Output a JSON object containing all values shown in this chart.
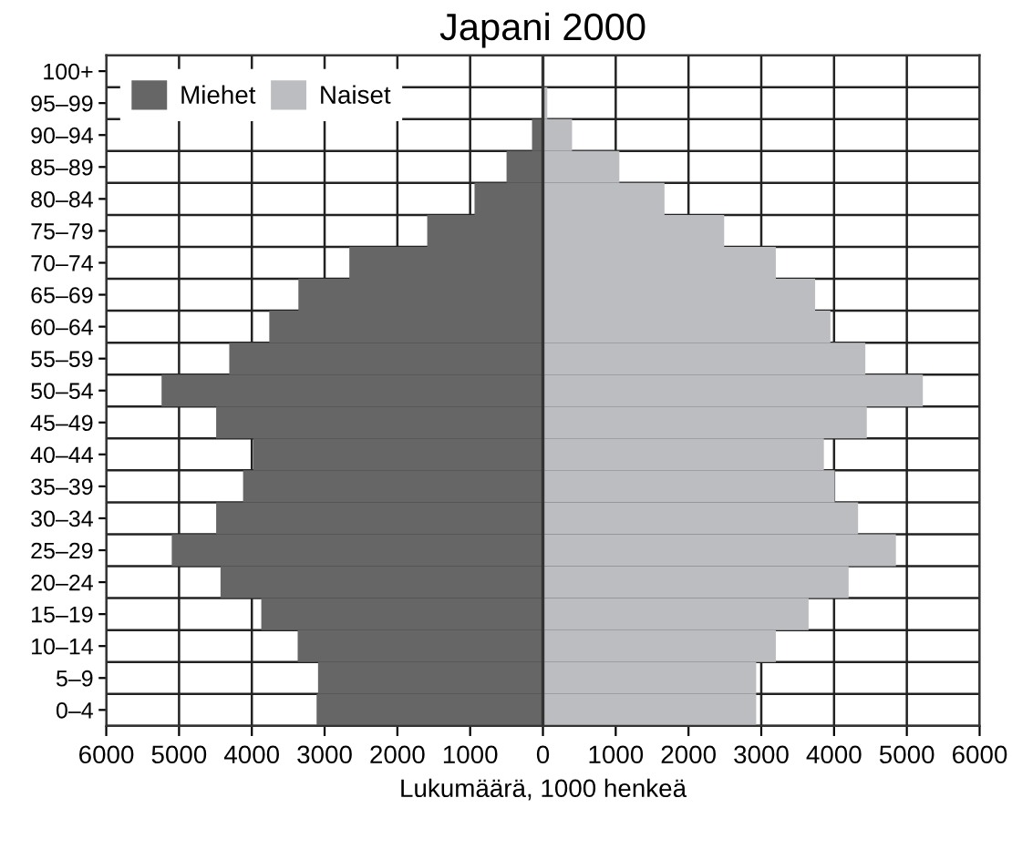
{
  "chart_data": {
    "type": "bar",
    "orientation": "horizontal",
    "stacked": true,
    "title": "Japani 2000",
    "xlabel": "Lukumäärä, 1000 henkeä",
    "categories": [
      "100+",
      "95–99",
      "90–94",
      "85–89",
      "80–84",
      "75–79",
      "70–74",
      "65–69",
      "60–64",
      "55–59",
      "50–54",
      "45–49",
      "40–44",
      "35–39",
      "30–34",
      "25–29",
      "20–24",
      "15–19",
      "10–14",
      "5–9",
      "0–4"
    ],
    "series": [
      {
        "name": "Miehet",
        "color": "#666666",
        "values": [
          0,
          null,
          -150,
          -500,
          -940,
          -1590,
          -2660,
          -3360,
          -3760,
          -4310,
          -5240,
          -4490,
          -3980,
          -4120,
          -4490,
          -5100,
          -4430,
          -3870,
          -3370,
          -3090,
          -3110
        ]
      },
      {
        "name": "Naiset",
        "color": "#bcbdc0",
        "values": [
          10,
          60,
          400,
          1050,
          1670,
          2490,
          3200,
          3740,
          3950,
          4430,
          5220,
          4450,
          3860,
          4010,
          4330,
          4850,
          4200,
          3650,
          3200,
          2930,
          2930
        ]
      }
    ],
    "xlim": [
      -6000,
      6000
    ],
    "xticks": [
      {
        "value": -6000,
        "label": "6000"
      },
      {
        "value": -5000,
        "label": "5000"
      },
      {
        "value": -4000,
        "label": "4000"
      },
      {
        "value": -3000,
        "label": "3000"
      },
      {
        "value": -2000,
        "label": "2000"
      },
      {
        "value": -1000,
        "label": "1000"
      },
      0,
      1000,
      2000,
      3000,
      4000,
      5000,
      6000
    ],
    "grid": true,
    "legend": "top left"
  }
}
